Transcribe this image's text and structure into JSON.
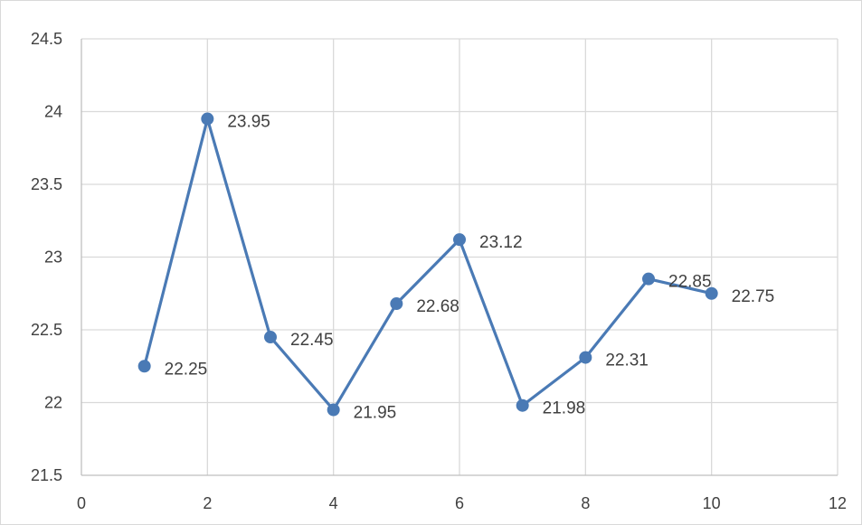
{
  "chart_data": {
    "type": "scatter",
    "title": "",
    "xlabel": "",
    "ylabel": "",
    "xlim": [
      0,
      12
    ],
    "ylim": [
      21.5,
      24.5
    ],
    "x_ticks": [
      0,
      2,
      4,
      6,
      8,
      10,
      12
    ],
    "y_ticks": [
      21.5,
      22,
      22.5,
      23,
      23.5,
      24,
      24.5
    ],
    "x_tick_labels": [
      "0",
      "2",
      "4",
      "6",
      "8",
      "10",
      "12"
    ],
    "y_tick_labels": [
      "21.5",
      "22",
      "22.5",
      "23",
      "23.5",
      "24",
      "24.5"
    ],
    "grid": true,
    "legend": "none",
    "line_color": "#4a7ab5",
    "marker_color": "#4a7ab5",
    "grid_color": "#d9d9d9",
    "series": [
      {
        "x": [
          1,
          2,
          3,
          4,
          5,
          6,
          7,
          8,
          9,
          10
        ],
        "y": [
          22.25,
          23.95,
          22.45,
          21.95,
          22.68,
          23.12,
          21.98,
          22.31,
          22.85,
          22.75
        ],
        "data_labels": [
          "22.25",
          "23.95",
          "22.45",
          "21.95",
          "22.68",
          "23.12",
          "21.98",
          "22.31",
          "22.85",
          "22.75"
        ],
        "connected": true,
        "marker": "circle"
      }
    ]
  }
}
